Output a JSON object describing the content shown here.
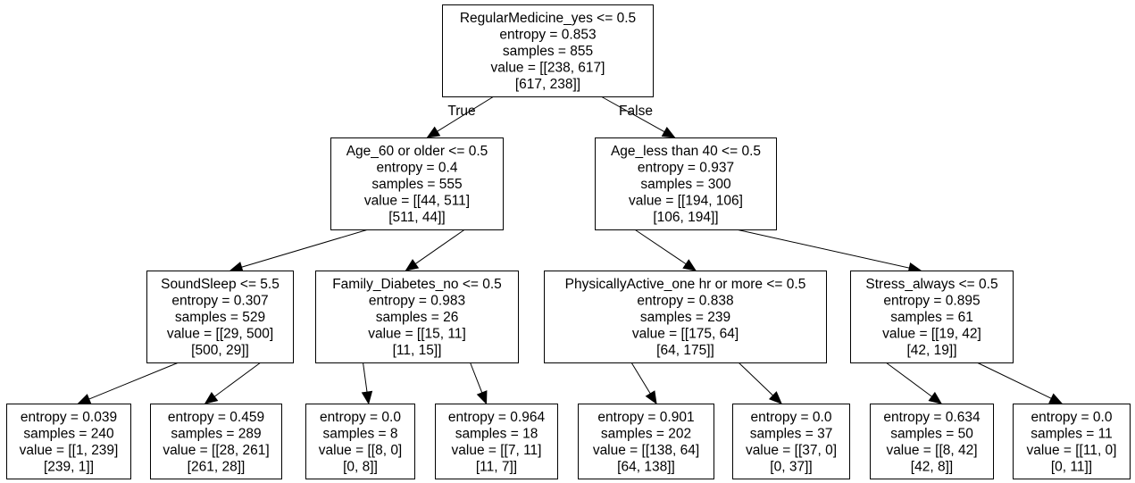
{
  "tree": {
    "nodes": [
      {
        "id": "n0",
        "lines": [
          "RegularMedicine_yes <= 0.5",
          "entropy = 0.853",
          "samples = 855",
          "value = [[238, 617]",
          "[617, 238]]"
        ]
      },
      {
        "id": "n1",
        "lines": [
          "Age_60 or older <= 0.5",
          "entropy = 0.4",
          "samples = 555",
          "value = [[44, 511]",
          "[511, 44]]"
        ]
      },
      {
        "id": "n2",
        "lines": [
          "Age_less than 40 <= 0.5",
          "entropy = 0.937",
          "samples = 300",
          "value = [[194, 106]",
          "[106, 194]]"
        ]
      },
      {
        "id": "n3",
        "lines": [
          "SoundSleep <= 5.5",
          "entropy = 0.307",
          "samples = 529",
          "value = [[29, 500]",
          "[500, 29]]"
        ]
      },
      {
        "id": "n4",
        "lines": [
          "Family_Diabetes_no <= 0.5",
          "entropy = 0.983",
          "samples = 26",
          "value = [[15, 11]",
          "[11, 15]]"
        ]
      },
      {
        "id": "n5",
        "lines": [
          "PhysicallyActive_one hr or more <= 0.5",
          "entropy = 0.838",
          "samples = 239",
          "value = [[175, 64]",
          "[64, 175]]"
        ]
      },
      {
        "id": "n6",
        "lines": [
          "Stress_always <= 0.5",
          "entropy = 0.895",
          "samples = 61",
          "value = [[19, 42]",
          "[42, 19]]"
        ]
      },
      {
        "id": "n7",
        "lines": [
          "entropy = 0.039",
          "samples = 240",
          "value = [[1, 239]",
          "[239, 1]]"
        ]
      },
      {
        "id": "n8",
        "lines": [
          "entropy = 0.459",
          "samples = 289",
          "value = [[28, 261]",
          "[261, 28]]"
        ]
      },
      {
        "id": "n9",
        "lines": [
          "entropy = 0.0",
          "samples = 8",
          "value = [[8, 0]",
          "[0, 8]]"
        ]
      },
      {
        "id": "n10",
        "lines": [
          "entropy = 0.964",
          "samples = 18",
          "value = [[7, 11]",
          "[11, 7]]"
        ]
      },
      {
        "id": "n11",
        "lines": [
          "entropy = 0.901",
          "samples = 202",
          "value = [[138, 64]",
          "[64, 138]]"
        ]
      },
      {
        "id": "n12",
        "lines": [
          "entropy = 0.0",
          "samples = 37",
          "value = [[37, 0]",
          "[0, 37]]"
        ]
      },
      {
        "id": "n13",
        "lines": [
          "entropy = 0.634",
          "samples = 50",
          "value = [[8, 42]",
          "[42, 8]]"
        ]
      },
      {
        "id": "n14",
        "lines": [
          "entropy = 0.0",
          "samples = 11",
          "value = [[11, 0]",
          "[0, 11]]"
        ]
      }
    ],
    "edges": [
      {
        "from": "n0",
        "to": "n1",
        "label": "True"
      },
      {
        "from": "n0",
        "to": "n2",
        "label": "False"
      },
      {
        "from": "n1",
        "to": "n3",
        "label": ""
      },
      {
        "from": "n1",
        "to": "n4",
        "label": ""
      },
      {
        "from": "n2",
        "to": "n5",
        "label": ""
      },
      {
        "from": "n2",
        "to": "n6",
        "label": ""
      },
      {
        "from": "n3",
        "to": "n7",
        "label": ""
      },
      {
        "from": "n3",
        "to": "n8",
        "label": ""
      },
      {
        "from": "n4",
        "to": "n9",
        "label": ""
      },
      {
        "from": "n4",
        "to": "n10",
        "label": ""
      },
      {
        "from": "n5",
        "to": "n11",
        "label": ""
      },
      {
        "from": "n5",
        "to": "n12",
        "label": ""
      },
      {
        "from": "n6",
        "to": "n13",
        "label": ""
      },
      {
        "from": "n6",
        "to": "n14",
        "label": ""
      }
    ]
  }
}
